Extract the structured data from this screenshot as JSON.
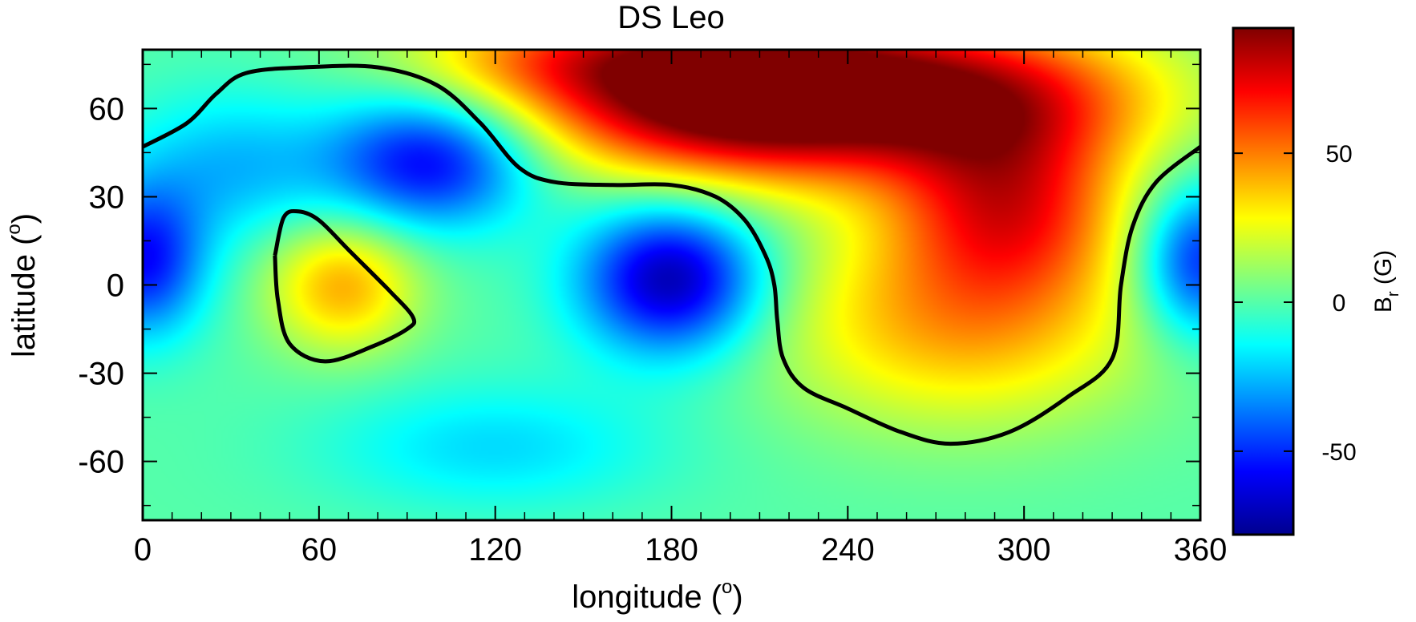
{
  "chart_data": {
    "type": "heatmap",
    "title": "DS Leo",
    "xlabel": "longitude (",
    "ylabel": "latitude (",
    "degree_mark": "o",
    "close_paren": ")",
    "xlim": [
      0,
      360
    ],
    "ylim": [
      -80,
      80
    ],
    "x_ticks": [
      0,
      60,
      120,
      180,
      240,
      300,
      360
    ],
    "y_ticks": [
      -60,
      -30,
      0,
      30,
      60
    ],
    "x_tick_labels": [
      "0",
      "60",
      "120",
      "180",
      "240",
      "300",
      "360"
    ],
    "y_tick_labels": [
      "-60",
      "-30",
      "0",
      "30",
      "60"
    ],
    "colorbar": {
      "label_main": "B",
      "label_sub": "r",
      "label_unit": " (G)",
      "range": [
        -78,
        92
      ],
      "ticks": [
        -50,
        0,
        50
      ],
      "tick_labels": [
        "-50",
        "0",
        "50"
      ],
      "colormap": "jet"
    },
    "field_components": [
      {
        "name": "positive spot",
        "lon": 205,
        "lat": 65,
        "amplitude": 115,
        "width_lon": 50,
        "width_lat": 20
      },
      {
        "name": "positive spot",
        "lon": 140,
        "lat": 78,
        "amplitude": 30,
        "width_lon": 40,
        "width_lat": 12
      },
      {
        "name": "positive spot",
        "lon": 290,
        "lat": 65,
        "amplitude": 55,
        "width_lon": 45,
        "width_lat": 18
      },
      {
        "name": "positive spot",
        "lon": 295,
        "lat": 28,
        "amplitude": 60,
        "width_lon": 28,
        "width_lat": 22
      },
      {
        "name": "positive spot",
        "lon": 278,
        "lat": -12,
        "amplitude": 42,
        "width_lon": 45,
        "width_lat": 25
      },
      {
        "name": "positive spot",
        "lon": 68,
        "lat": 0,
        "amplitude": 42,
        "width_lon": 18,
        "width_lat": 16
      },
      {
        "name": "negative spot",
        "lon": 180,
        "lat": 2,
        "amplitude": -72,
        "width_lon": 22,
        "width_lat": 18
      },
      {
        "name": "negative spot",
        "lon": 98,
        "lat": 42,
        "amplitude": -60,
        "width_lon": 25,
        "width_lat": 16
      },
      {
        "name": "negative spot",
        "lon": 0,
        "lat": 8,
        "amplitude": -55,
        "width_lon": 15,
        "width_lat": 18
      },
      {
        "name": "negative spot",
        "lon": 360,
        "lat": 8,
        "amplitude": -55,
        "width_lon": 15,
        "width_lat": 18
      },
      {
        "name": "negative spot",
        "lon": 30,
        "lat": 40,
        "amplitude": -25,
        "width_lon": 25,
        "width_lat": 18
      },
      {
        "name": "negative spot",
        "lon": 120,
        "lat": -55,
        "amplitude": -20,
        "width_lon": 40,
        "width_lat": 15
      }
    ],
    "zero_contours": [
      {
        "name": "main polarity inversion line",
        "lon": [
          0,
          15,
          25,
          35,
          55,
          80,
          100,
          115,
          128,
          140,
          160,
          180,
          195,
          205,
          212,
          215,
          216,
          218,
          225,
          240,
          258,
          275,
          295,
          315,
          330,
          333,
          337,
          345,
          360
        ],
        "lat": [
          47,
          55,
          65,
          72,
          74,
          74,
          68,
          55,
          40,
          35,
          34,
          34,
          30,
          22,
          10,
          0,
          -12,
          -25,
          -35,
          -42,
          -50,
          -54,
          -50,
          -38,
          -25,
          0,
          20,
          35,
          47
        ]
      },
      {
        "name": "closed polarity loop",
        "lon": [
          45,
          48,
          53,
          60,
          70,
          84,
          92,
          90,
          78,
          62,
          50,
          46,
          45
        ],
        "lat": [
          10,
          23,
          25,
          22,
          12,
          -2,
          -11,
          -15,
          -21,
          -26,
          -20,
          -5,
          10
        ]
      }
    ]
  }
}
